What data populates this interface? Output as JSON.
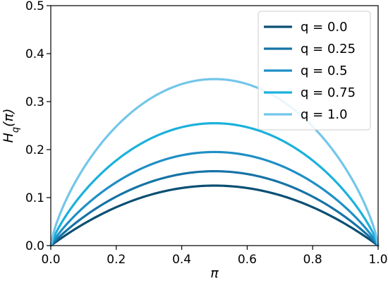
{
  "chart_data": {
    "type": "line",
    "title": "",
    "xlabel": "π",
    "ylabel_main": "H",
    "ylabel_sub": "q",
    "ylabel_arg": "(π)",
    "xlim": [
      0.0,
      1.0
    ],
    "ylim": [
      0.0,
      0.5
    ],
    "xticks": [
      "0.0",
      "0.2",
      "0.4",
      "0.6",
      "0.8",
      "1.0"
    ],
    "yticks": [
      "0.0",
      "0.1",
      "0.2",
      "0.3",
      "0.4",
      "0.5"
    ],
    "grid": false,
    "legend_position": "top-right",
    "series": [
      {
        "name": "q = 0.0",
        "q": 0.0,
        "peak_y": 0.125,
        "color": "#0a4f73",
        "points": [
          [
            0.0,
            0.0
          ],
          [
            0.1,
            0.045
          ],
          [
            0.2,
            0.08
          ],
          [
            0.3,
            0.105
          ],
          [
            0.4,
            0.12
          ],
          [
            0.5,
            0.125
          ],
          [
            0.6,
            0.12
          ],
          [
            0.7,
            0.105
          ],
          [
            0.8,
            0.08
          ],
          [
            0.9,
            0.045
          ],
          [
            1.0,
            0.0
          ]
        ]
      },
      {
        "name": "q = 0.25",
        "q": 0.25,
        "peak_y": 0.155,
        "color": "#1673a6",
        "points": [
          [
            0.0,
            0.0
          ],
          [
            0.1,
            0.056
          ],
          [
            0.2,
            0.099
          ],
          [
            0.3,
            0.13
          ],
          [
            0.4,
            0.149
          ],
          [
            0.5,
            0.155
          ],
          [
            0.6,
            0.149
          ],
          [
            0.7,
            0.13
          ],
          [
            0.8,
            0.099
          ],
          [
            0.9,
            0.056
          ],
          [
            1.0,
            0.0
          ]
        ]
      },
      {
        "name": "q = 0.5",
        "q": 0.5,
        "peak_y": 0.195,
        "color": "#1f8fc6",
        "points": [
          [
            0.0,
            0.0
          ],
          [
            0.1,
            0.07
          ],
          [
            0.2,
            0.125
          ],
          [
            0.3,
            0.164
          ],
          [
            0.4,
            0.187
          ],
          [
            0.5,
            0.195
          ],
          [
            0.6,
            0.187
          ],
          [
            0.7,
            0.164
          ],
          [
            0.8,
            0.125
          ],
          [
            0.9,
            0.07
          ],
          [
            1.0,
            0.0
          ]
        ]
      },
      {
        "name": "q = 0.75",
        "q": 0.75,
        "peak_y": 0.255,
        "color": "#1ab1dc",
        "points": [
          [
            0.0,
            0.0
          ],
          [
            0.1,
            0.092
          ],
          [
            0.2,
            0.163
          ],
          [
            0.3,
            0.214
          ],
          [
            0.4,
            0.245
          ],
          [
            0.5,
            0.255
          ],
          [
            0.6,
            0.245
          ],
          [
            0.7,
            0.214
          ],
          [
            0.8,
            0.163
          ],
          [
            0.9,
            0.092
          ],
          [
            1.0,
            0.0
          ]
        ]
      },
      {
        "name": "q = 1.0",
        "q": 1.0,
        "peak_y": 0.347,
        "color": "#73c6ea",
        "points": [
          [
            0.0,
            0.0
          ],
          [
            0.1,
            0.125
          ],
          [
            0.2,
            0.222
          ],
          [
            0.3,
            0.291
          ],
          [
            0.4,
            0.333
          ],
          [
            0.5,
            0.347
          ],
          [
            0.6,
            0.333
          ],
          [
            0.7,
            0.291
          ],
          [
            0.8,
            0.222
          ],
          [
            0.9,
            0.125
          ],
          [
            1.0,
            0.0
          ]
        ]
      }
    ]
  }
}
